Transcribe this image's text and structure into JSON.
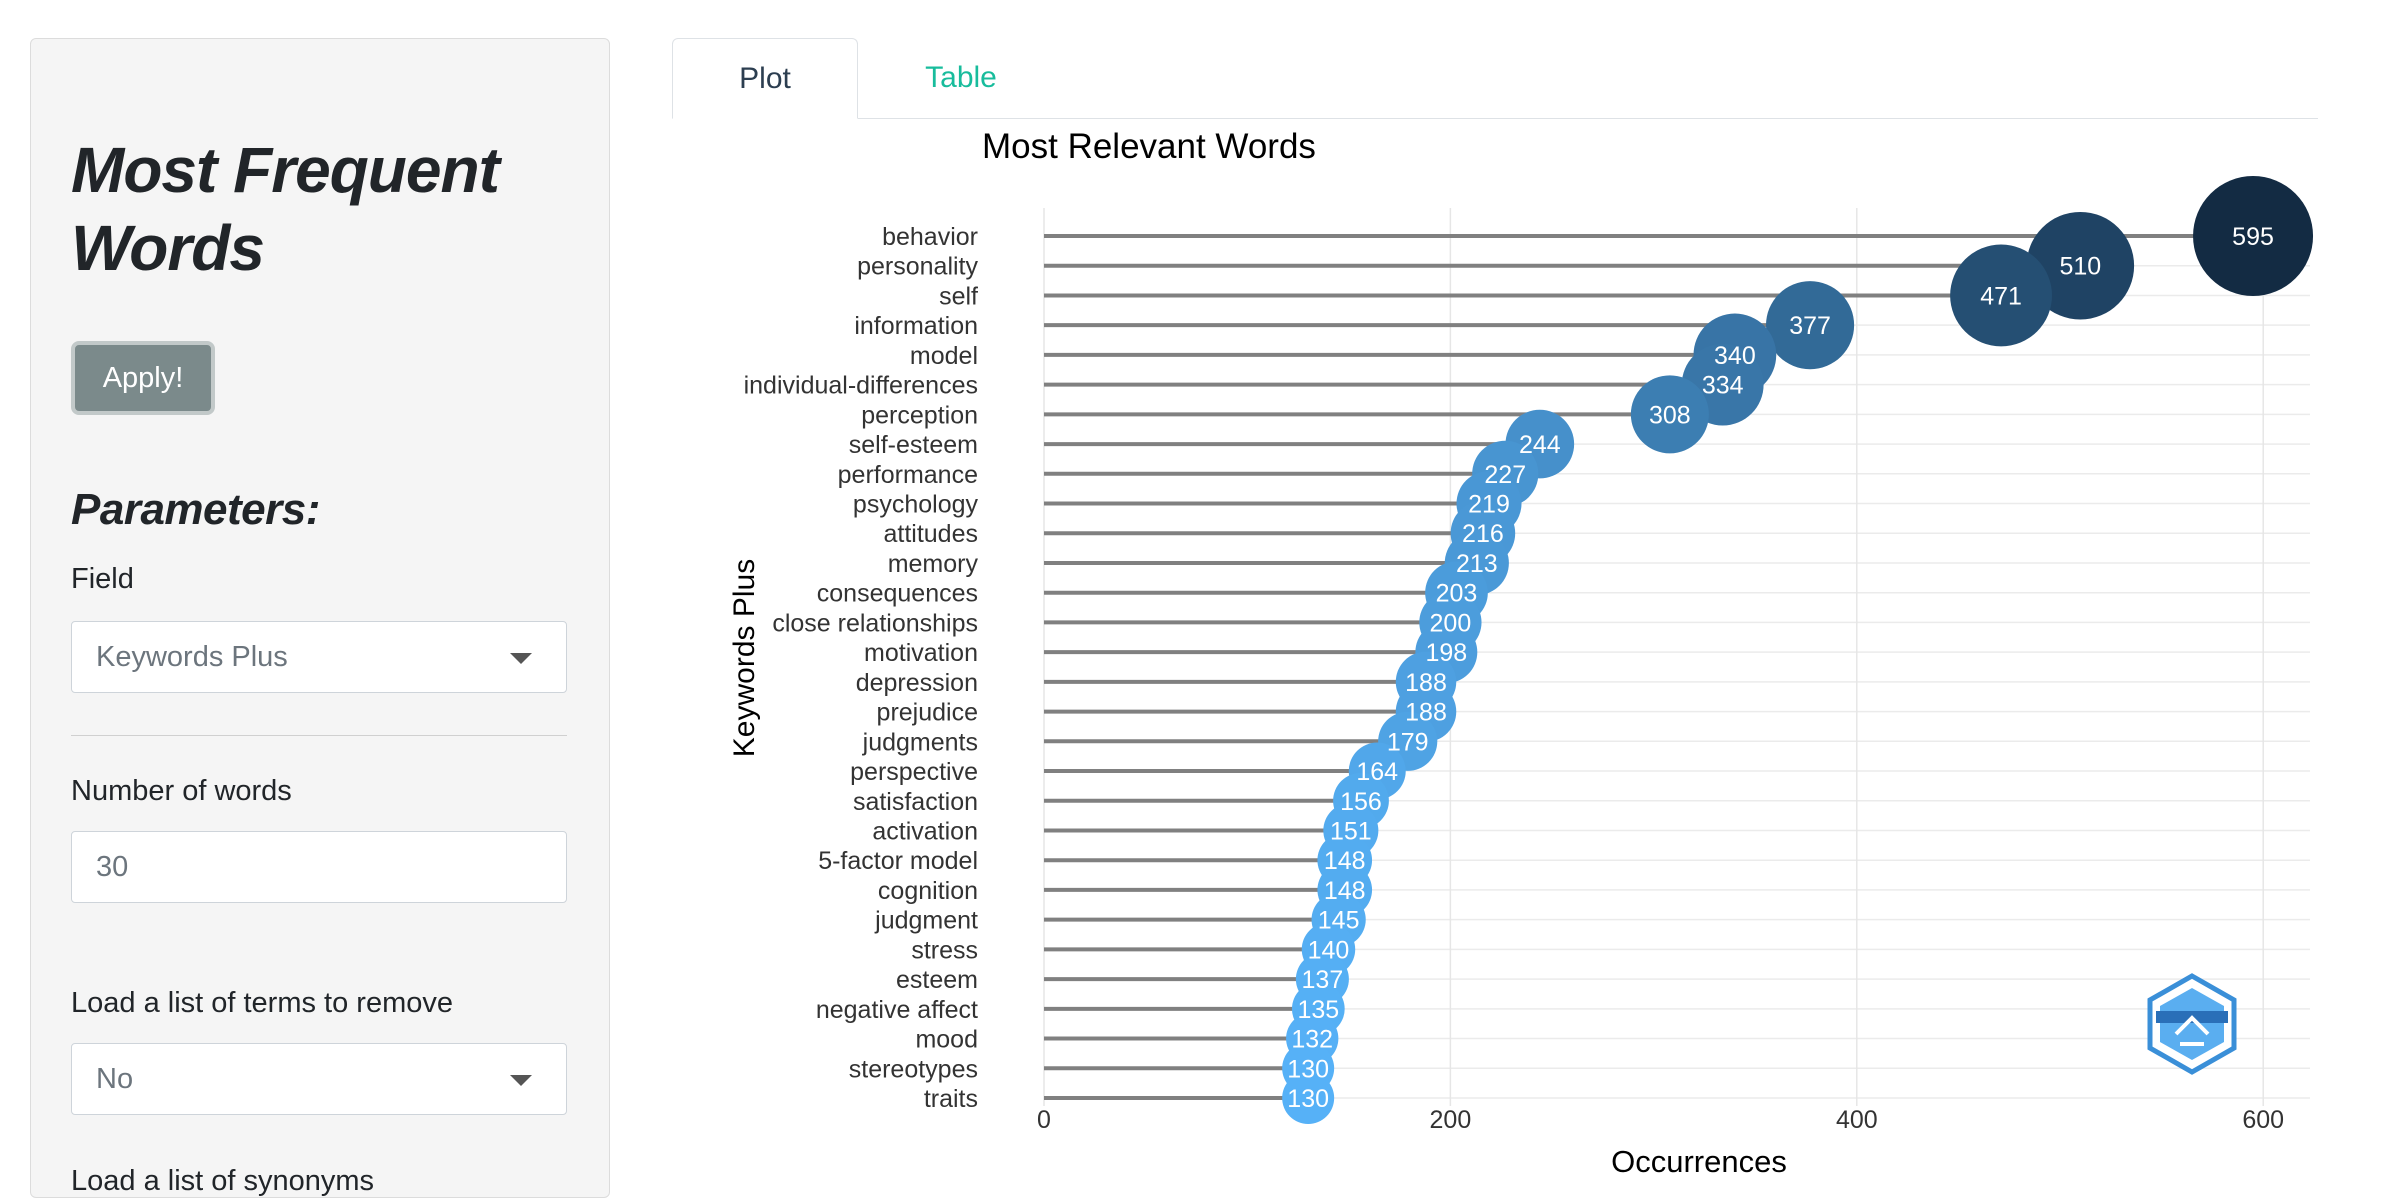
{
  "sidebar": {
    "title": "Most Frequent Words",
    "apply_label": "Apply!",
    "parameters_title": "Parameters:",
    "field_label": "Field",
    "field_value": "Keywords Plus",
    "num_words_label": "Number of words",
    "num_words_value": "30",
    "remove_label": "Load a list of terms to remove",
    "remove_value": "No",
    "synonyms_label": "Load a list of synonyms"
  },
  "tabs": [
    {
      "label": "Plot",
      "active": true
    },
    {
      "label": "Table",
      "active": false
    }
  ],
  "colors": {
    "tab_active": "#2c3e50",
    "tab_inactive": "#18bc9c",
    "bubble_low": "#56B1F7",
    "bubble_high": "#132B43",
    "stem": "#808080",
    "button": "#7b8a8b"
  },
  "logo_icon": "bibliometrix-logo-icon",
  "chart_data": {
    "type": "scatter",
    "style": "lollipop-bubble",
    "title": "Most Relevant Words",
    "xlabel": "Occurrences",
    "ylabel": "Keywords Plus",
    "xlim": [
      0,
      625
    ],
    "xticks": [
      0,
      200,
      400,
      600
    ],
    "grid": true,
    "categories": [
      "behavior",
      "personality",
      "self",
      "information",
      "model",
      "individual-differences",
      "perception",
      "self-esteem",
      "performance",
      "psychology",
      "attitudes",
      "memory",
      "consequences",
      "close relationships",
      "motivation",
      "depression",
      "prejudice",
      "judgments",
      "perspective",
      "satisfaction",
      "activation",
      "5-factor model",
      "cognition",
      "judgment",
      "stress",
      "esteem",
      "negative affect",
      "mood",
      "stereotypes",
      "traits"
    ],
    "values": [
      595,
      510,
      471,
      377,
      340,
      334,
      308,
      244,
      227,
      219,
      216,
      213,
      203,
      200,
      198,
      188,
      188,
      179,
      164,
      156,
      151,
      148,
      148,
      145,
      140,
      137,
      135,
      132,
      130,
      130
    ],
    "labels": [
      "595",
      "510",
      "471",
      "377",
      "340",
      "334",
      "308",
      "244",
      "227",
      "219",
      "216",
      "213",
      "203",
      "200",
      "198",
      "188",
      "188",
      "179",
      "164",
      "156",
      "151",
      "148",
      "148",
      "145",
      "140",
      "137",
      "135",
      "132",
      "130",
      "130"
    ]
  }
}
